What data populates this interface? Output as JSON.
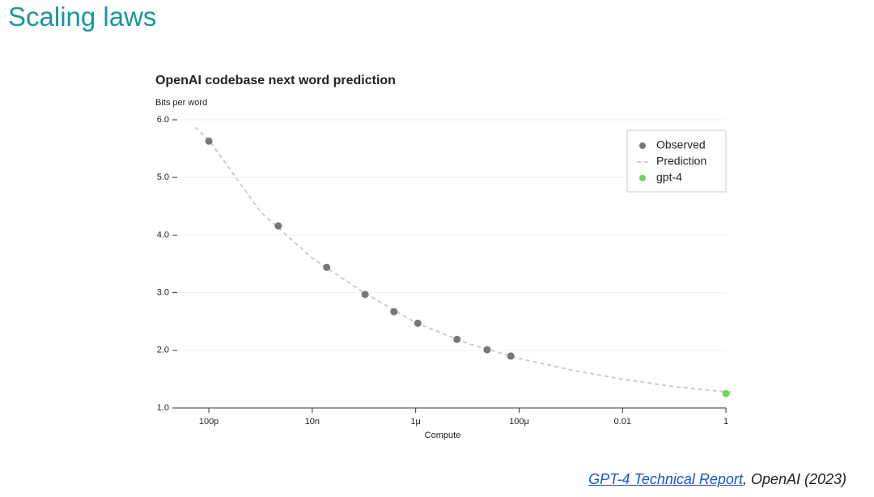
{
  "header": {
    "title": "Scaling laws"
  },
  "chart_data": {
    "type": "scatter",
    "title": "OpenAI codebase next word prediction",
    "y_label": "Bits per word",
    "x_label": "Compute",
    "xscale": "log",
    "xlim": [
      2.5e-11,
      1.4
    ],
    "ylim": [
      1,
      6
    ],
    "xticks": [
      {
        "value": 1e-10,
        "label": "100p"
      },
      {
        "value": 1e-08,
        "label": "10n"
      },
      {
        "value": 1e-06,
        "label": "1μ"
      },
      {
        "value": 0.0001,
        "label": "100μ"
      },
      0.01,
      1
    ],
    "yticks": [
      {
        "value": 1,
        "label": "1.0"
      },
      {
        "value": 2,
        "label": "2.0"
      },
      {
        "value": 3,
        "label": "3.0"
      },
      {
        "value": 4,
        "label": "4.0"
      },
      {
        "value": 5,
        "label": "5.0"
      },
      {
        "value": 6,
        "label": "6.0"
      }
    ],
    "grid": true,
    "legend": "top-right",
    "series": [
      {
        "name": "Observed",
        "kind": "points",
        "color": "#777777",
        "x": [
          1e-10,
          2.2e-09,
          1.9e-08,
          1.05e-07,
          3.8e-07,
          1.1e-06,
          6.3e-06,
          2.4e-05,
          6.9e-05
        ],
        "values": [
          5.63,
          4.16,
          3.44,
          2.97,
          2.67,
          2.47,
          2.19,
          2.01,
          1.9
        ]
      },
      {
        "name": "Prediction",
        "kind": "dashed-line",
        "color": "#cccccc",
        "x": [
          5.4e-11,
          1e-10,
          1e-09,
          1e-08,
          1e-07,
          1e-06,
          1e-05,
          0.0001,
          0.001,
          0.01,
          0.1,
          1,
          1.4
        ],
        "values": [
          5.87,
          5.65,
          4.4,
          3.6,
          3.0,
          2.48,
          2.12,
          1.86,
          1.66,
          1.5,
          1.37,
          1.28,
          1.27
        ]
      },
      {
        "name": "gpt-4",
        "kind": "points",
        "color": "#6dd35e",
        "x": [
          1
        ],
        "values": [
          1.25
        ]
      }
    ]
  },
  "footer": {
    "link": "GPT-4 Technical Report",
    "text": ", OpenAI (2023)"
  }
}
